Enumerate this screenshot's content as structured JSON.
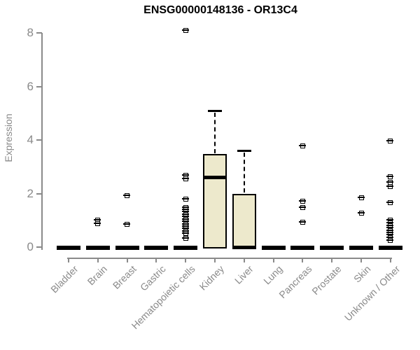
{
  "chart_data": {
    "type": "boxplot",
    "title": "ENSG00000148136 - OR13C4",
    "ylabel": "Expression",
    "ylim": [
      0,
      8.3
    ],
    "yticks": [
      0,
      2,
      4,
      6,
      8
    ],
    "grid": false,
    "legend": "none",
    "categories": [
      "Bladder",
      "Brain",
      "Breast",
      "Gastric",
      "Hematopoietic cells",
      "Kidney",
      "Liver",
      "Lung",
      "Pancreas",
      "Prostate",
      "Skin",
      "Unknown / Other"
    ],
    "boxes": [
      {
        "category": "Bladder",
        "q1": 0,
        "median": 0,
        "q3": 0,
        "whisker_low": 0,
        "whisker_high": 0,
        "outliers": []
      },
      {
        "category": "Brain",
        "q1": 0,
        "median": 0,
        "q3": 0,
        "whisker_low": 0,
        "whisker_high": 0,
        "outliers": [
          1.0,
          0.88
        ]
      },
      {
        "category": "Breast",
        "q1": 0,
        "median": 0,
        "q3": 0,
        "whisker_low": 0,
        "whisker_high": 0,
        "outliers": [
          1.93,
          0.86
        ]
      },
      {
        "category": "Gastric",
        "q1": 0,
        "median": 0,
        "q3": 0,
        "whisker_low": 0,
        "whisker_high": 0,
        "outliers": []
      },
      {
        "category": "Hematopoietic cells",
        "q1": 0,
        "median": 0,
        "q3": 0,
        "whisker_low": 0,
        "whisker_high": 0,
        "outliers": [
          8.1,
          2.69,
          2.54,
          1.78,
          1.49,
          1.4,
          1.31,
          1.22,
          1.13,
          1.04,
          0.95,
          0.86,
          0.77,
          0.68,
          0.59,
          0.5,
          0.33
        ]
      },
      {
        "category": "Kidney",
        "q1": 0,
        "median": 2.6,
        "q3": 3.48,
        "whisker_low": 0,
        "whisker_high": 5.1,
        "outliers": []
      },
      {
        "category": "Liver",
        "q1": 0,
        "median": 0,
        "q3": 2.0,
        "whisker_low": 0,
        "whisker_high": 3.6,
        "outliers": []
      },
      {
        "category": "Lung",
        "q1": 0,
        "median": 0,
        "q3": 0,
        "whisker_low": 0,
        "whisker_high": 0,
        "outliers": []
      },
      {
        "category": "Pancreas",
        "q1": 0,
        "median": 0,
        "q3": 0,
        "whisker_low": 0,
        "whisker_high": 0,
        "outliers": [
          3.77,
          1.7,
          1.48,
          0.94
        ]
      },
      {
        "category": "Prostate",
        "q1": 0,
        "median": 0,
        "q3": 0,
        "whisker_low": 0,
        "whisker_high": 0,
        "outliers": []
      },
      {
        "category": "Skin",
        "q1": 0,
        "median": 0,
        "q3": 0,
        "whisker_low": 0,
        "whisker_high": 0,
        "outliers": [
          1.85,
          1.28
        ]
      },
      {
        "category": "Unknown / Other",
        "q1": 0,
        "median": 0,
        "q3": 0,
        "whisker_low": 0,
        "whisker_high": 0,
        "outliers": [
          3.95,
          2.62,
          2.43,
          2.25,
          1.65,
          1.0,
          0.9,
          0.8,
          0.71,
          0.62,
          0.53,
          0.45,
          0.36,
          0.25
        ]
      }
    ],
    "colors": {
      "box_fill": "#EDE9CC",
      "box_border": "#000000",
      "median": "#000000",
      "outlier": "#000000",
      "axis": "#8a8a8a",
      "tick_label": "#8a8a8a",
      "title": "#000000"
    }
  }
}
